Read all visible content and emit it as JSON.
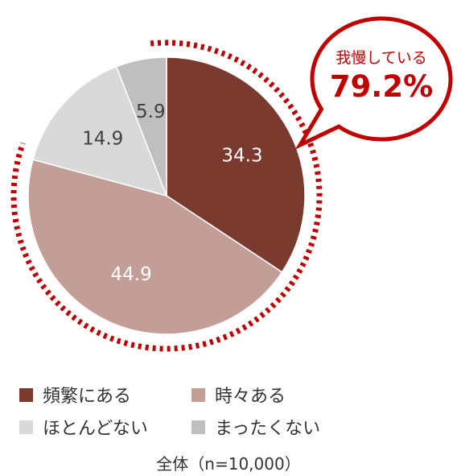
{
  "chart_data": {
    "type": "pie",
    "categories": [
      "頻繁にある",
      "時々ある",
      "ほとんどない",
      "まったくない"
    ],
    "values": [
      34.3,
      44.9,
      14.9,
      5.9
    ],
    "colors": [
      "#7a3b2e",
      "#c29e96",
      "#d9d9d9",
      "#bfbfbf"
    ],
    "label_colors": [
      "#ffffff",
      "#ffffff",
      "#404040",
      "#404040"
    ],
    "start_angle_deg": 0,
    "direction": "clockwise",
    "callout": {
      "label": "我慢している",
      "value": "79.2%",
      "covers": [
        "頻繁にある",
        "時々ある"
      ],
      "color": "#c00000",
      "style": "dotted-arc"
    },
    "legend_placement": "bottom",
    "footnote": "全体（n=10,000）"
  }
}
